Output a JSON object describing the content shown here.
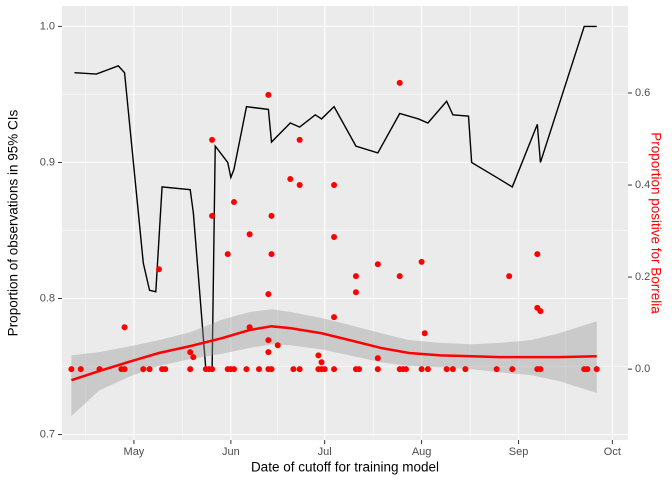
{
  "chart_data": {
    "type": "combo",
    "x_label": "Date of cutoff for training model",
    "y_label": "Proportion of observations in 95% CIs",
    "y2_label": "Proportion positive for Borrelia",
    "y2_label_color": "#ff0000",
    "grid": true,
    "xlim": [
      "04-08",
      "10-06"
    ],
    "xticks": [
      {
        "value": "05-01",
        "label": "May"
      },
      {
        "value": "06-01",
        "label": "Jun"
      },
      {
        "value": "07-01",
        "label": "Jul"
      },
      {
        "value": "08-01",
        "label": "Aug"
      },
      {
        "value": "09-01",
        "label": "Sep"
      },
      {
        "value": "10-01",
        "label": "Oct"
      }
    ],
    "ylim": [
      0.696,
      1.015
    ],
    "yticks": [
      0.7,
      0.8,
      0.9,
      {
        "value": 1,
        "label": "1.0"
      }
    ],
    "y2lim": [
      -0.154,
      0.789
    ],
    "y2ticks": [
      {
        "value": 0,
        "label": "0.0"
      },
      0.2,
      0.4,
      0.6
    ],
    "series": [
      {
        "type": "line",
        "color": "#000000",
        "x": [
          "04-12",
          "04-19",
          "04-26",
          "04-28",
          "05-04",
          "05-06",
          "05-08",
          "05-10",
          "05-19",
          "05-20",
          "05-24",
          "05-26",
          "05-27",
          "05-31",
          "06-01",
          "06-02",
          "06-06",
          "06-13",
          "06-14",
          "06-20",
          "06-23",
          "06-28",
          "06-30",
          "07-04",
          "07-11",
          "07-18",
          "07-25",
          "07-31",
          "08-03",
          "08-09",
          "08-11",
          "08-16",
          "08-17",
          "08-25",
          "08-30",
          "09-07",
          "09-08",
          "09-22",
          "09-26"
        ],
        "values": [
          0.966,
          0.965,
          0.971,
          0.966,
          0.826,
          0.806,
          0.805,
          0.882,
          0.88,
          0.863,
          0.748,
          0.747,
          0.912,
          0.9,
          0.889,
          0.895,
          0.941,
          0.939,
          0.915,
          0.929,
          0.926,
          0.935,
          0.932,
          0.941,
          0.912,
          0.907,
          0.936,
          0.932,
          0.929,
          0.945,
          0.935,
          0.934,
          0.9,
          0.889,
          0.882,
          0.928,
          0.9,
          1.0,
          1.0
        ]
      },
      {
        "type": "smooth",
        "axis": "y2",
        "color": "#ff0000",
        "band_color": "#999999",
        "x": [
          "04-11",
          "04-20",
          "04-30",
          "05-09",
          "05-19",
          "05-29",
          "06-07",
          "06-14",
          "06-20",
          "06-30",
          "07-09",
          "07-19",
          "07-28",
          "08-07",
          "08-17",
          "08-26",
          "09-05",
          "09-14",
          "09-26"
        ],
        "values": [
          -0.024,
          -0.004,
          0.017,
          0.035,
          0.05,
          0.067,
          0.085,
          0.093,
          0.089,
          0.078,
          0.063,
          0.046,
          0.035,
          0.03,
          0.028,
          0.026,
          0.026,
          0.026,
          0.028
        ],
        "upper": [
          0.03,
          0.037,
          0.05,
          0.063,
          0.08,
          0.107,
          0.124,
          0.13,
          0.124,
          0.111,
          0.096,
          0.078,
          0.063,
          0.057,
          0.054,
          0.057,
          0.063,
          0.078,
          0.104
        ],
        "lower": [
          -0.102,
          -0.046,
          -0.015,
          0.007,
          0.022,
          0.033,
          0.046,
          0.054,
          0.052,
          0.043,
          0.03,
          0.015,
          0.007,
          0.004,
          0,
          -0.007,
          -0.013,
          -0.026,
          -0.052
        ]
      },
      {
        "type": "scatter",
        "axis": "y2",
        "color": "#ff0000",
        "x": [
          "04-11",
          "04-14",
          "04-20",
          "04-27",
          "04-28",
          "05-04",
          "05-06",
          "05-10",
          "05-11",
          "05-19",
          "05-24",
          "05-25",
          "05-26",
          "05-31",
          "06-01",
          "06-02",
          "06-06",
          "06-10",
          "06-13",
          "06-14",
          "06-21",
          "06-23",
          "06-29",
          "06-30",
          "07-01",
          "07-04",
          "07-11",
          "07-12",
          "07-18",
          "07-25",
          "07-26",
          "07-27",
          "08-01",
          "08-03",
          "08-09",
          "08-11",
          "08-15",
          "08-25",
          "08-30",
          "09-07",
          "09-08",
          "09-22",
          "09-23",
          "09-26",
          "04-28",
          "05-09",
          "05-19",
          "05-20",
          "05-26",
          "05-26",
          "05-31",
          "06-02",
          "06-07",
          "06-07",
          "06-13",
          "06-14",
          "06-14",
          "06-13",
          "06-13",
          "06-13",
          "06-16",
          "06-20",
          "06-23",
          "06-23",
          "06-29",
          "06-30",
          "07-04",
          "07-04",
          "07-04",
          "07-11",
          "07-11",
          "07-18",
          "07-18",
          "07-25",
          "07-25",
          "08-01",
          "08-02",
          "08-29",
          "09-07",
          "09-07",
          "09-08"
        ],
        "values": [
          0,
          0,
          0,
          0,
          0,
          0,
          0,
          0,
          0,
          0,
          0,
          0,
          0,
          0,
          0,
          0,
          0,
          0,
          0,
          0,
          0,
          0,
          0,
          0,
          0,
          0,
          0,
          0,
          0,
          0,
          0,
          0,
          0,
          0,
          0,
          0,
          0,
          0,
          0,
          0,
          0,
          0,
          0,
          0,
          0.091,
          0.217,
          0.037,
          0.026,
          0.498,
          0.333,
          0.25,
          0.363,
          0.293,
          0.091,
          0.596,
          0.333,
          0.25,
          0.163,
          0.037,
          0.063,
          0.052,
          0.413,
          0.4,
          0.498,
          0.03,
          0.015,
          0.4,
          0.287,
          0.113,
          0.202,
          0.167,
          0.228,
          0.024,
          0.622,
          0.202,
          0.233,
          0.078,
          0.202,
          0.25,
          0.133,
          0.126
        ]
      }
    ]
  }
}
